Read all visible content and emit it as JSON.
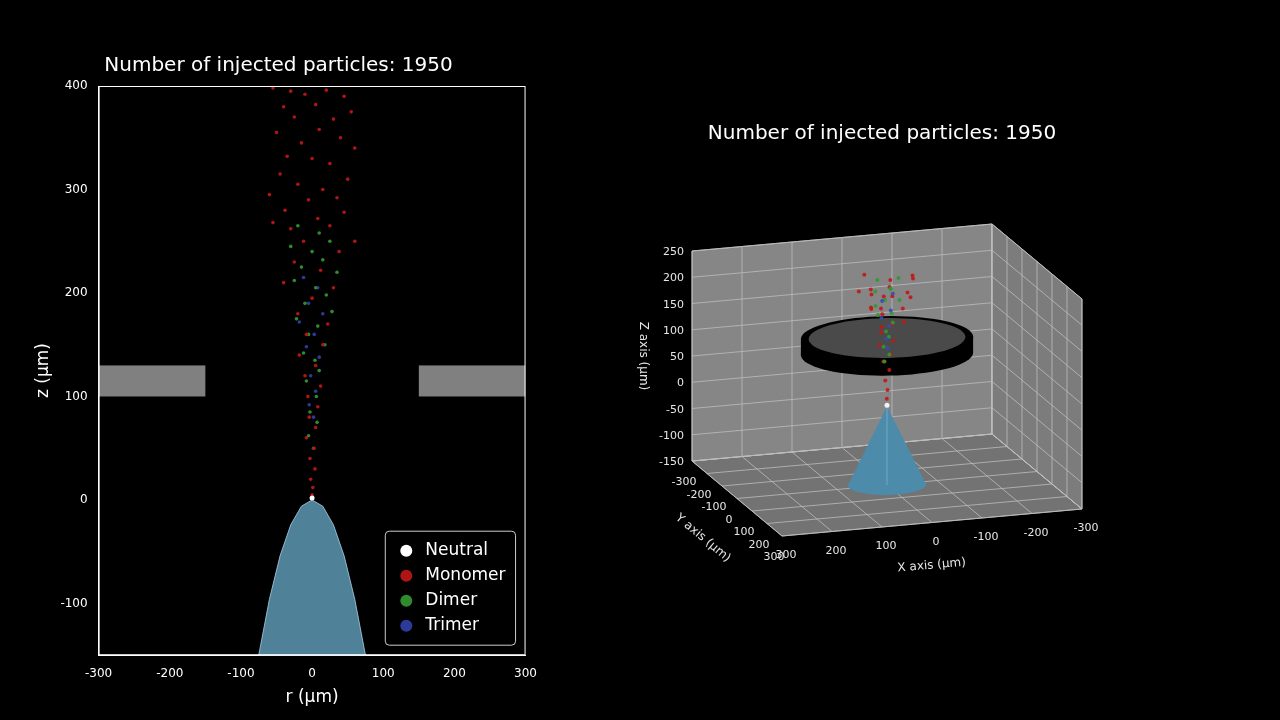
{
  "chart_data": [
    {
      "type": "scatter",
      "title": "Number of injected particles: 1950",
      "x_label": "r (μm)",
      "y_label": "z (μm)",
      "xlim": [
        -300,
        300
      ],
      "xticks": [
        -300,
        -200,
        -100,
        0,
        100,
        200,
        300
      ],
      "ylim": [
        -150,
        400
      ],
      "yticks": [
        -100,
        0,
        100,
        200,
        300,
        400
      ],
      "grid": false,
      "legend": "lower right",
      "series": [
        {
          "name": "Neutral",
          "color": "#ffffff",
          "x": [
            0
          ],
          "values": [
            2
          ]
        },
        {
          "name": "Monomer",
          "color": "#b01515",
          "x": [
            -55,
            -30,
            -10,
            20,
            45,
            -40,
            5,
            55,
            -25,
            30,
            -50,
            10,
            40,
            -15,
            60,
            -35,
            0,
            25,
            -45,
            50,
            -20,
            15,
            -60,
            35,
            -5,
            -38,
            45,
            8,
            -30,
            25,
            60,
            -55,
            -12,
            38,
            -25,
            12,
            -40,
            30,
            0,
            -20,
            22,
            -8,
            15,
            -18,
            5,
            -10,
            12,
            -6,
            8,
            -4,
            5,
            -8,
            3,
            -3,
            4,
            -2,
            1,
            0
          ],
          "values": [
            398,
            395,
            392,
            396,
            390,
            380,
            382,
            375,
            370,
            368,
            355,
            358,
            350,
            345,
            340,
            332,
            330,
            325,
            315,
            310,
            305,
            300,
            295,
            292,
            290,
            280,
            278,
            272,
            262,
            265,
            250,
            268,
            250,
            240,
            230,
            222,
            210,
            205,
            195,
            180,
            170,
            160,
            150,
            140,
            130,
            120,
            110,
            100,
            90,
            80,
            70,
            60,
            50,
            40,
            30,
            20,
            12,
            5
          ]
        },
        {
          "name": "Dimer",
          "color": "#2e8b2e",
          "x": [
            -20,
            10,
            25,
            -30,
            0,
            15,
            -15,
            35,
            -25,
            5,
            20,
            -10,
            28,
            -22,
            8,
            -5,
            18,
            -12,
            4,
            10,
            -8,
            6,
            -3,
            7,
            -5,
            2
          ],
          "values": [
            265,
            258,
            250,
            245,
            240,
            232,
            225,
            220,
            212,
            205,
            198,
            190,
            182,
            175,
            168,
            160,
            150,
            142,
            135,
            125,
            115,
            100,
            85,
            75,
            62,
            50
          ]
        },
        {
          "name": "Trimer",
          "color": "#2d3a9a",
          "x": [
            -12,
            8,
            -5,
            15,
            -18,
            3,
            -8,
            10,
            -2,
            5,
            -4,
            2
          ],
          "values": [
            215,
            205,
            190,
            180,
            172,
            160,
            148,
            138,
            120,
            105,
            92,
            80
          ]
        }
      ],
      "emitter": {
        "color": "#4f8299",
        "r": [
          -75,
          -60,
          -45,
          -30,
          -15,
          0,
          15,
          30,
          45,
          60,
          75
        ],
        "z": [
          -150,
          -96,
          -54,
          -24,
          -6,
          0,
          -6,
          -24,
          -54,
          -96,
          -150
        ]
      },
      "electrode": {
        "color": "#808080",
        "r_inner": 150,
        "r_outer": 300,
        "z_bottom": 100,
        "z_top": 130
      }
    },
    {
      "type": "scatter3d",
      "title": "Number of injected particles: 1950",
      "x_label": "X axis (μm)",
      "y_label": "Y axis (μm)",
      "z_label": "Z axis (μm)",
      "xlim": [
        -300,
        300
      ],
      "xticks": [
        -300,
        -200,
        -100,
        0,
        100,
        200,
        300
      ],
      "ylim": [
        -300,
        300
      ],
      "yticks": [
        -300,
        -200,
        -100,
        0,
        100,
        200,
        300
      ],
      "zlim": [
        -150,
        250
      ],
      "zticks": [
        -150,
        -100,
        -50,
        0,
        50,
        100,
        150,
        200,
        250
      ],
      "grid": true,
      "series": [
        {
          "color": "#ffffff",
          "x": [
            0
          ],
          "y": [
            0
          ],
          "z": [
            2
          ]
        },
        {
          "color": "#c01818",
          "x": [
            -45,
            35,
            10,
            -55,
            40,
            -20,
            55,
            0,
            -35,
            25,
            -50,
            45,
            -10,
            15,
            -30,
            20,
            5,
            -25,
            18,
            -15,
            10,
            -8,
            12,
            -5,
            6,
            -3,
            4,
            -2,
            1
          ],
          "y": [
            20,
            -35,
            50,
            -10,
            25,
            -45,
            -5,
            35,
            40,
            -20,
            -30,
            45,
            -55,
            10,
            5,
            -40,
            -15,
            30,
            25,
            -20,
            -5,
            15,
            -10,
            8,
            -4,
            5,
            2,
            -3,
            2
          ],
          "z": [
            250,
            245,
            240,
            236,
            232,
            228,
            222,
            218,
            214,
            210,
            205,
            200,
            195,
            190,
            185,
            180,
            172,
            165,
            158,
            150,
            140,
            128,
            115,
            100,
            85,
            70,
            50,
            30,
            15
          ]
        },
        {
          "color": "#2e9b2e",
          "x": [
            -20,
            15,
            0,
            25,
            -15,
            10,
            -25,
            20,
            -5,
            12,
            -10,
            5,
            -6,
            8,
            -3,
            4
          ],
          "y": [
            10,
            -15,
            25,
            5,
            -25,
            20,
            0,
            -10,
            15,
            -20,
            5,
            10,
            -8,
            4,
            6,
            -3
          ],
          "z": [
            245,
            238,
            230,
            222,
            215,
            208,
            200,
            190,
            180,
            170,
            160,
            145,
            130,
            115,
            100,
            85
          ]
        },
        {
          "color": "#3a4ab0",
          "x": [
            -10,
            8,
            -4,
            12,
            -7,
            3,
            -2
          ],
          "y": [
            5,
            -6,
            12,
            3,
            -9,
            5,
            -3
          ],
          "z": [
            215,
            200,
            185,
            170,
            150,
            130,
            110
          ]
        }
      ],
      "emitter": {
        "color": "#4d8bab",
        "radius": 75,
        "z_base": -150,
        "z_tip": 0
      },
      "electrode": {
        "color": "#000000",
        "r_inner": 150,
        "r_outer": 165,
        "z_bottom": 100,
        "z_top": 130
      }
    }
  ]
}
